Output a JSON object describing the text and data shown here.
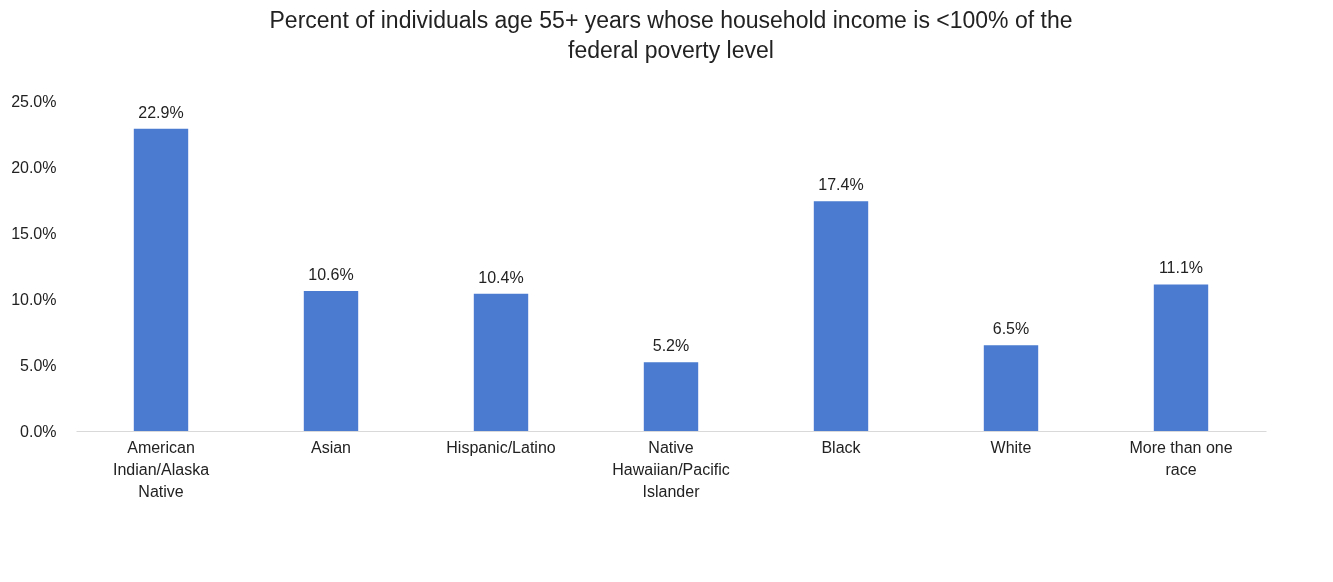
{
  "chart_data": {
    "type": "bar",
    "title": "Percent of individuals age 55+ years whose household income is <100% of the federal poverty level",
    "categories": [
      "American Indian/Alaska Native",
      "Asian",
      "Hispanic/Latino",
      "Native Hawaiian/Pacific Islander",
      "Black",
      "White",
      "More than one race"
    ],
    "values": [
      22.9,
      10.6,
      10.4,
      5.2,
      17.4,
      6.5,
      11.1
    ],
    "value_labels": [
      "22.9%",
      "10.6%",
      "10.4%",
      "5.2%",
      "17.4%",
      "6.5%",
      "11.1%"
    ],
    "color": "#4a7bd0",
    "ylim": [
      0,
      25
    ],
    "yticks": [
      {
        "value": 0,
        "label": "0.0%"
      },
      {
        "value": 5,
        "label": "5.0%"
      },
      {
        "value": 10,
        "label": "10.0%"
      },
      {
        "value": 15,
        "label": "15.0%"
      },
      {
        "value": 20,
        "label": "20.0%"
      },
      {
        "value": 25,
        "label": "25.0%"
      }
    ],
    "grid": false
  }
}
